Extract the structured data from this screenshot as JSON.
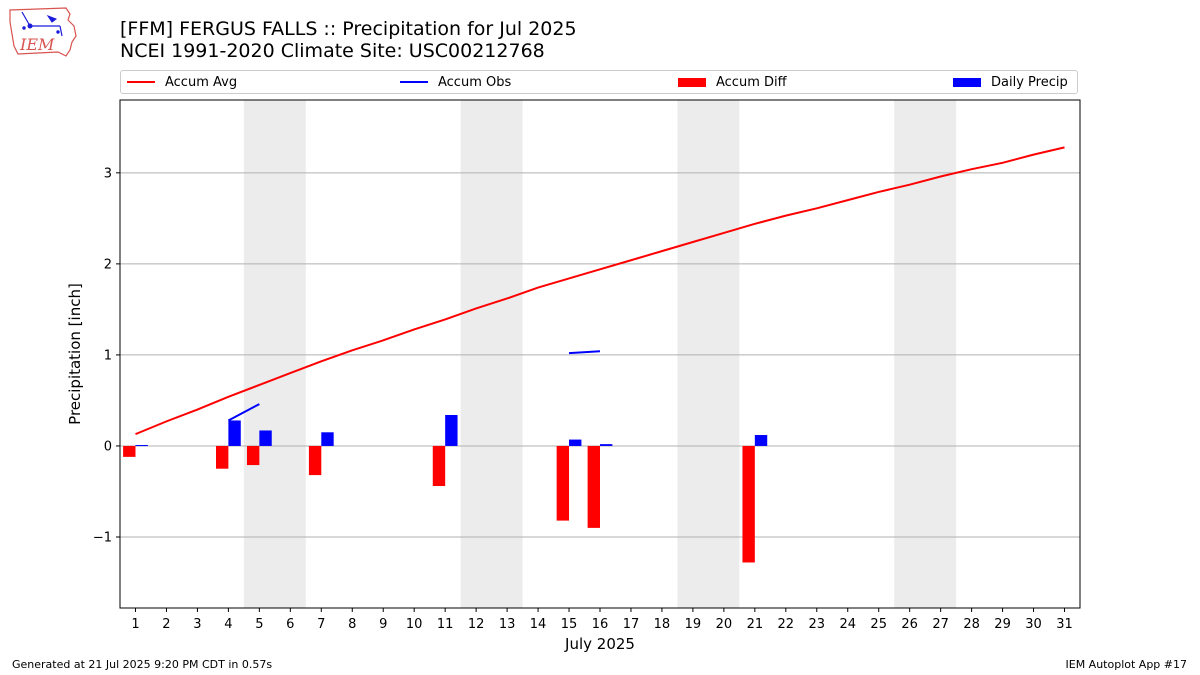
{
  "logo": {
    "text": "IEM"
  },
  "title": {
    "line1": "[FFM] FERGUS FALLS :: Precipitation for Jul 2025",
    "line2": "NCEI 1991-2020 Climate Site: USC00212768"
  },
  "legend": [
    {
      "label": "Accum Avg",
      "kind": "line",
      "color": "#ff0000"
    },
    {
      "label": "Accum Obs",
      "kind": "line",
      "color": "#0000ff"
    },
    {
      "label": "Accum Diff",
      "kind": "box",
      "color": "#ff0000"
    },
    {
      "label": "Daily Precip",
      "kind": "box",
      "color": "#0000ff"
    }
  ],
  "footer": {
    "left": "Generated at 21 Jul 2025 9:20 PM CDT in 0.57s",
    "right": "IEM Autoplot App #17"
  },
  "chart_data": {
    "type": "bar",
    "xlabel": "July 2025",
    "ylabel": "Precipitation [inch]",
    "x": [
      1,
      2,
      3,
      4,
      5,
      6,
      7,
      8,
      9,
      10,
      11,
      12,
      13,
      14,
      15,
      16,
      17,
      18,
      19,
      20,
      21,
      22,
      23,
      24,
      25,
      26,
      27,
      28,
      29,
      30,
      31
    ],
    "xlim": [
      0.5,
      31.5
    ],
    "ylim": [
      -1.78,
      3.8
    ],
    "yticks": [
      -1,
      0,
      1,
      2,
      3
    ],
    "ytick_labels": [
      "−1",
      "0",
      "1",
      "2",
      "3"
    ],
    "grid": "horizontal",
    "weekend_shading": [
      [
        4.5,
        6.5
      ],
      [
        11.5,
        13.5
      ],
      [
        18.5,
        20.5
      ],
      [
        25.5,
        27.5
      ]
    ],
    "series": [
      {
        "name": "Accum Avg",
        "type": "line",
        "color": "#ff0000",
        "x": [
          1,
          2,
          3,
          4,
          5,
          6,
          7,
          8,
          9,
          10,
          11,
          12,
          13,
          14,
          15,
          16,
          17,
          18,
          19,
          20,
          21,
          22,
          23,
          24,
          25,
          26,
          27,
          28,
          29,
          30,
          31
        ],
        "values": [
          0.13,
          0.27,
          0.4,
          0.54,
          0.67,
          0.8,
          0.93,
          1.05,
          1.16,
          1.28,
          1.39,
          1.51,
          1.62,
          1.74,
          1.84,
          1.94,
          2.04,
          2.14,
          2.24,
          2.34,
          2.44,
          2.53,
          2.61,
          2.7,
          2.79,
          2.87,
          2.96,
          3.04,
          3.11,
          3.2,
          3.28
        ]
      },
      {
        "name": "Accum Obs",
        "type": "line",
        "color": "#0000ff",
        "segments": [
          {
            "x": [
              4,
              5
            ],
            "values": [
              0.28,
              0.46
            ]
          },
          {
            "x": [
              15,
              16
            ],
            "values": [
              1.02,
              1.04
            ]
          }
        ]
      },
      {
        "name": "Accum Diff",
        "type": "bar",
        "color": "#ff0000",
        "x": [
          1,
          4,
          5,
          7,
          11,
          15,
          16,
          21
        ],
        "values": [
          -0.12,
          -0.25,
          -0.21,
          -0.32,
          -0.44,
          -0.82,
          -0.9,
          -1.28
        ]
      },
      {
        "name": "Daily Precip",
        "type": "bar",
        "color": "#0000ff",
        "x": [
          1,
          4,
          5,
          7,
          11,
          15,
          16,
          21
        ],
        "values": [
          0.01,
          0.28,
          0.17,
          0.15,
          0.34,
          0.07,
          0.02,
          0.12
        ]
      }
    ]
  }
}
